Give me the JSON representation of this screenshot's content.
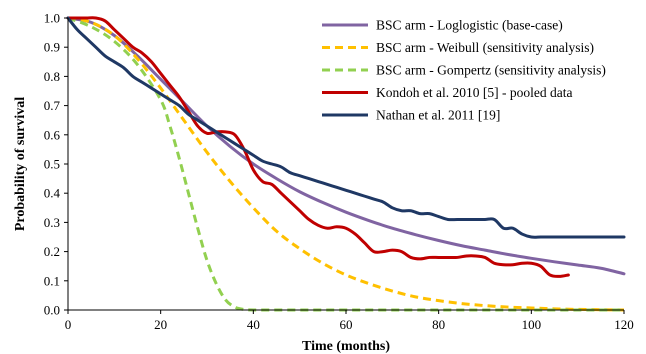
{
  "chart_data": {
    "type": "line",
    "xlabel": "Time (months)",
    "ylabel": "Probability  of survival",
    "xlim": [
      0,
      120
    ],
    "ylim": [
      0,
      1
    ],
    "xticks": [
      0,
      20,
      40,
      60,
      80,
      100,
      120
    ],
    "yticks": [
      0,
      0.1,
      0.2,
      0.3,
      0.4,
      0.5,
      0.6,
      0.7,
      0.8,
      0.9,
      1.0
    ],
    "grid": false,
    "legend_position": "top-right",
    "series": [
      {
        "name": "BSC arm - Loglogistic (base-case)",
        "color": "#8064a2",
        "dash": "solid",
        "x": [
          0,
          5,
          10,
          15,
          20,
          25,
          30,
          35,
          40,
          45,
          50,
          55,
          60,
          65,
          70,
          75,
          80,
          85,
          90,
          95,
          100,
          105,
          110,
          115,
          120
        ],
        "y": [
          1.0,
          0.985,
          0.94,
          0.87,
          0.79,
          0.71,
          0.63,
          0.56,
          0.5,
          0.45,
          0.405,
          0.368,
          0.335,
          0.306,
          0.28,
          0.258,
          0.238,
          0.22,
          0.205,
          0.19,
          0.177,
          0.165,
          0.154,
          0.143,
          0.124
        ]
      },
      {
        "name": "BSC arm - Weibull (sensitivity analysis)",
        "color": "#ffc000",
        "dash": "dashed",
        "x": [
          0,
          5,
          10,
          15,
          20,
          25,
          30,
          35,
          40,
          45,
          50,
          55,
          60,
          65,
          70,
          75,
          80,
          85,
          90,
          95,
          100,
          105,
          110,
          115,
          120
        ],
        "y": [
          1.0,
          0.985,
          0.94,
          0.86,
          0.76,
          0.65,
          0.54,
          0.44,
          0.35,
          0.27,
          0.21,
          0.16,
          0.12,
          0.09,
          0.065,
          0.045,
          0.032,
          0.022,
          0.015,
          0.01,
          0.007,
          0.004,
          0.002,
          0.001,
          0.0
        ]
      },
      {
        "name": "BSC arm - Gompertz (sensitivity analysis)",
        "color": "#92d050",
        "dash": "dashed",
        "x": [
          0,
          5,
          10,
          15,
          20,
          22,
          24,
          26,
          28,
          30,
          32,
          34,
          36,
          38,
          40,
          50,
          60,
          80,
          100,
          120
        ],
        "y": [
          1.0,
          0.97,
          0.92,
          0.84,
          0.72,
          0.63,
          0.52,
          0.4,
          0.28,
          0.17,
          0.09,
          0.035,
          0.01,
          0.002,
          0.0,
          0.0,
          0.0,
          0.0,
          0.0,
          0.0
        ]
      },
      {
        "name": "Kondoh et al. 2010 [5] - pooled data",
        "color": "#c00000",
        "dash": "solid",
        "x": [
          0,
          2,
          4,
          6,
          8,
          10,
          12,
          14,
          16,
          18,
          20,
          22,
          24,
          26,
          28,
          30,
          32,
          34,
          36,
          38,
          40,
          42,
          44,
          46,
          48,
          50,
          52,
          54,
          56,
          58,
          60,
          62,
          64,
          66,
          68,
          70,
          72,
          74,
          76,
          78,
          80,
          82,
          84,
          86,
          88,
          90,
          92,
          94,
          96,
          98,
          100,
          102,
          104,
          106,
          108
        ],
        "y": [
          1.0,
          1.0,
          1.0,
          1.0,
          0.99,
          0.96,
          0.93,
          0.9,
          0.88,
          0.85,
          0.81,
          0.77,
          0.73,
          0.68,
          0.63,
          0.605,
          0.61,
          0.61,
          0.6,
          0.55,
          0.48,
          0.44,
          0.43,
          0.4,
          0.37,
          0.34,
          0.31,
          0.29,
          0.28,
          0.285,
          0.28,
          0.26,
          0.23,
          0.2,
          0.2,
          0.205,
          0.2,
          0.18,
          0.175,
          0.18,
          0.18,
          0.18,
          0.18,
          0.185,
          0.185,
          0.18,
          0.16,
          0.155,
          0.155,
          0.16,
          0.16,
          0.15,
          0.12,
          0.115,
          0.12
        ]
      },
      {
        "name": "Nathan et al. 2011 [19]",
        "color": "#1f3864",
        "dash": "solid",
        "x": [
          0,
          2,
          4,
          6,
          8,
          10,
          12,
          14,
          16,
          18,
          20,
          22,
          24,
          26,
          28,
          30,
          32,
          34,
          36,
          38,
          40,
          42,
          44,
          46,
          48,
          50,
          52,
          54,
          56,
          58,
          60,
          62,
          64,
          66,
          68,
          70,
          72,
          74,
          76,
          78,
          80,
          82,
          84,
          86,
          88,
          90,
          92,
          94,
          96,
          98,
          100,
          102,
          104,
          106,
          108,
          110,
          112,
          114,
          116,
          118,
          120
        ],
        "y": [
          1.0,
          0.96,
          0.93,
          0.9,
          0.87,
          0.85,
          0.83,
          0.8,
          0.78,
          0.76,
          0.74,
          0.72,
          0.7,
          0.67,
          0.65,
          0.63,
          0.61,
          0.59,
          0.57,
          0.55,
          0.53,
          0.51,
          0.5,
          0.49,
          0.47,
          0.46,
          0.45,
          0.44,
          0.43,
          0.42,
          0.41,
          0.4,
          0.39,
          0.38,
          0.37,
          0.35,
          0.34,
          0.34,
          0.33,
          0.33,
          0.32,
          0.31,
          0.31,
          0.31,
          0.31,
          0.31,
          0.31,
          0.28,
          0.28,
          0.26,
          0.25,
          0.25,
          0.25,
          0.25,
          0.25,
          0.25,
          0.25,
          0.25,
          0.25,
          0.25,
          0.25
        ]
      }
    ]
  }
}
